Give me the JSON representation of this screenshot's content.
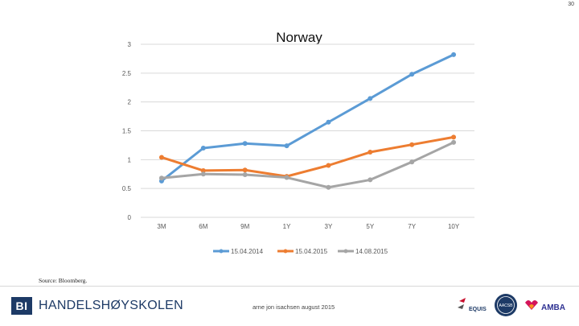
{
  "page": {
    "number": "30",
    "source": "Source: Bloomberg.",
    "school": "HANDELSHØYSKOLEN",
    "school_logo": "BI",
    "author": "arne jon isachsen august 2015",
    "accreditation_logos": [
      "equis-logo",
      "aacsb-logo",
      "amba-logo"
    ],
    "accreditation_text": {
      "equis": "EQUIS",
      "aacsb": "AACSB",
      "amba": "AMBA"
    }
  },
  "chart_data": {
    "type": "line",
    "title": "Norway",
    "categories": [
      "3M",
      "6M",
      "9M",
      "1Y",
      "3Y",
      "5Y",
      "7Y",
      "10Y"
    ],
    "y_ticks": [
      "0",
      "0.5",
      "1",
      "1.5",
      "2",
      "2.5",
      "3"
    ],
    "ylim": [
      0,
      3
    ],
    "grid": true,
    "legend_position": "bottom",
    "series": [
      {
        "name": "15.04.2014",
        "color": "#5b9bd5",
        "values": [
          0.63,
          1.2,
          1.28,
          1.24,
          1.65,
          2.06,
          2.48,
          2.82
        ]
      },
      {
        "name": "15.04.2015",
        "color": "#ed7d31",
        "values": [
          1.04,
          0.81,
          0.82,
          0.71,
          0.9,
          1.13,
          1.26,
          1.39
        ]
      },
      {
        "name": "14.08.2015",
        "color": "#a5a5a5",
        "values": [
          0.68,
          0.75,
          0.74,
          0.69,
          0.52,
          0.65,
          0.96,
          1.3
        ]
      }
    ]
  }
}
